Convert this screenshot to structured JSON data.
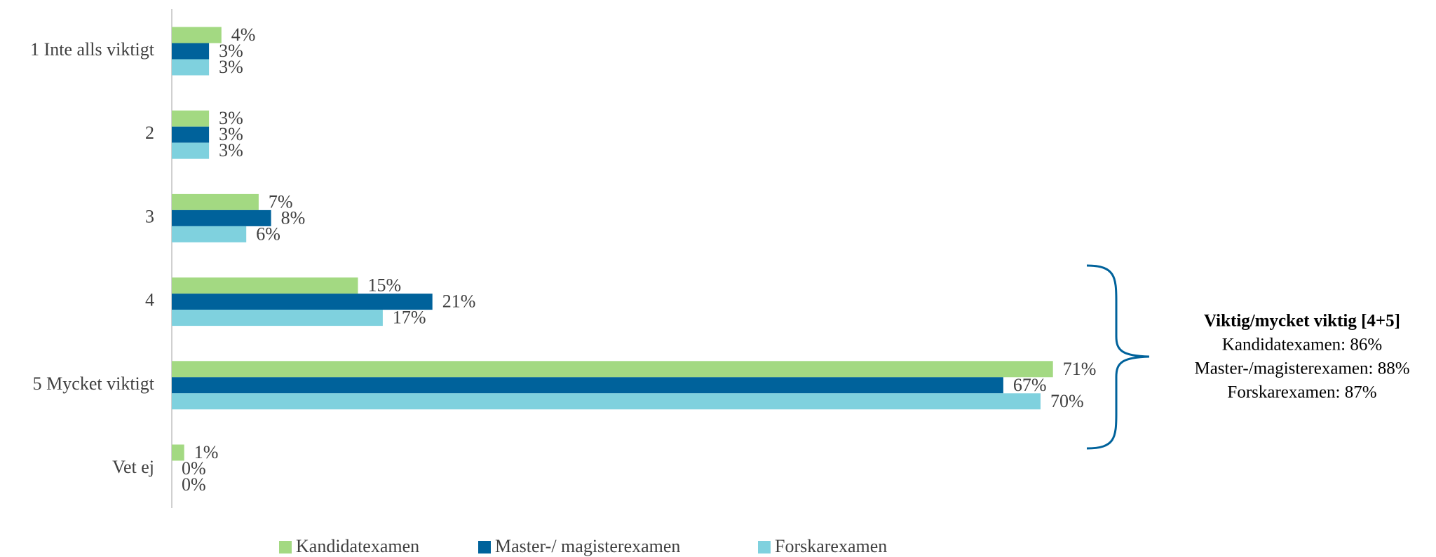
{
  "chart_data": {
    "type": "hbar",
    "categories": [
      "1 Inte alls viktigt",
      "2",
      "3",
      "4",
      "5 Mycket viktigt",
      "Vet ej"
    ],
    "series": [
      {
        "name": "Kandidatexamen",
        "color": "#a3d982",
        "values": [
          4,
          3,
          7,
          15,
          71,
          1
        ],
        "value_labels": [
          "4%",
          "3%",
          "7%",
          "15%",
          "71%",
          "1%"
        ]
      },
      {
        "name": "Master-/ magisterexamen",
        "color": "#00629b",
        "values": [
          3,
          3,
          8,
          21,
          67,
          0
        ],
        "value_labels": [
          "3%",
          "3%",
          "8%",
          "21%",
          "67%",
          "0%"
        ]
      },
      {
        "name": "Forskarexamen",
        "color": "#7fd1de",
        "values": [
          3,
          3,
          6,
          17,
          70,
          0
        ],
        "value_labels": [
          "3%",
          "3%",
          "6%",
          "17%",
          "70%",
          "0%"
        ]
      }
    ],
    "annotation": {
      "title": "Viktig/mycket viktig [4+5]",
      "lines": [
        "Kandidatexamen: 86%",
        "Master-/magisterexamen: 88%",
        "Forskarexamen: 87%"
      ]
    }
  }
}
